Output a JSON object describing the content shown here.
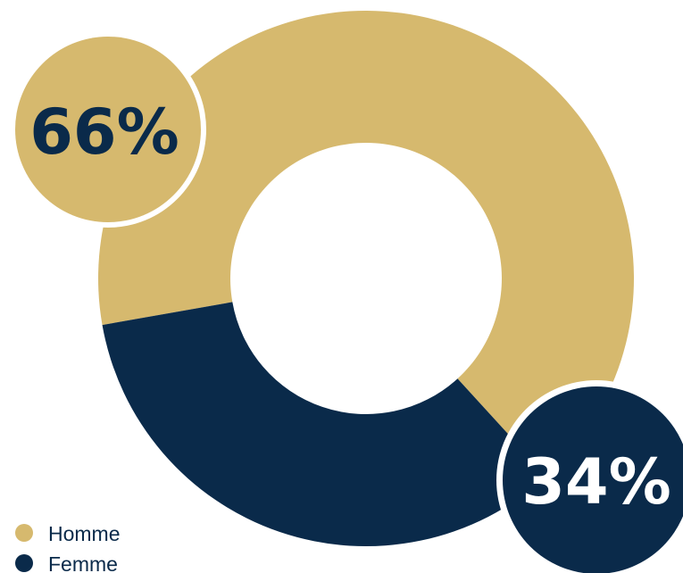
{
  "chart_data": {
    "type": "pie",
    "donut": true,
    "title": "",
    "categories": [
      "Homme",
      "Femme"
    ],
    "values": [
      66,
      34
    ],
    "value_labels": [
      "66%",
      "34%"
    ],
    "colors": [
      "#d6b96e",
      "#0a2a4a"
    ],
    "legend": {
      "position": "bottom-left",
      "items": [
        {
          "label": "Homme",
          "color": "#d6b96e"
        },
        {
          "label": "Femme",
          "color": "#0a2a4a"
        }
      ]
    }
  }
}
